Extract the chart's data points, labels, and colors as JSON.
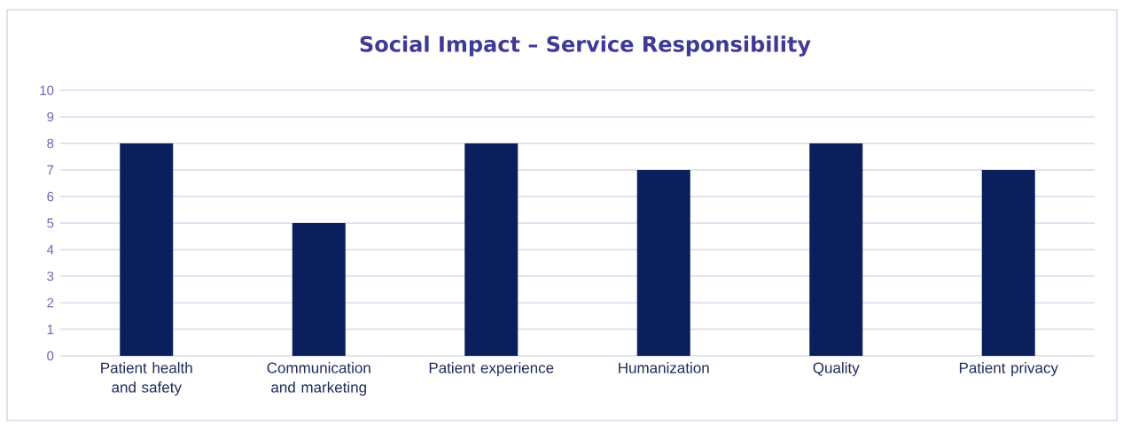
{
  "chart_data": {
    "type": "bar",
    "title": "Social Impact – Service Responsibility",
    "categories": [
      "Patient health and safety",
      "Communication and marketing",
      "Patient experience",
      "Humanization",
      "Quality",
      "Patient privacy"
    ],
    "values": [
      8,
      5,
      8,
      7,
      8,
      7
    ],
    "color": "#0b1f5c",
    "ylim": [
      0,
      10
    ],
    "yticks": [
      0,
      1,
      2,
      3,
      4,
      5,
      6,
      7,
      8,
      9,
      10
    ],
    "grid": "y"
  }
}
